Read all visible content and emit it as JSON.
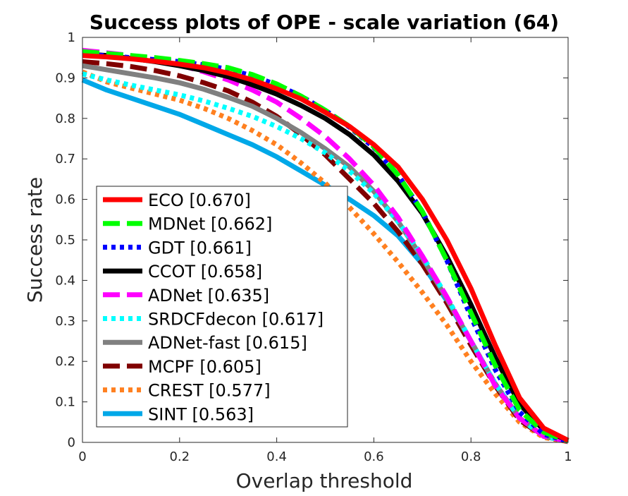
{
  "chart_data": {
    "type": "line",
    "title": "Success plots of OPE - scale variation (64)",
    "xlabel": "Overlap threshold",
    "ylabel": "Success rate",
    "xlim": [
      0,
      1
    ],
    "ylim": [
      0,
      1
    ],
    "xticks": [
      0,
      0.2,
      0.4,
      0.6,
      0.8,
      1
    ],
    "xtick_labels": [
      "0",
      "0.2",
      "0.4",
      "0.6",
      "0.8",
      "1"
    ],
    "yticks": [
      0,
      0.1,
      0.2,
      0.3,
      0.4,
      0.5,
      0.6,
      0.7,
      0.8,
      0.9,
      1
    ],
    "ytick_labels": [
      "0",
      "0.1",
      "0.2",
      "0.3",
      "0.4",
      "0.5",
      "0.6",
      "0.7",
      "0.8",
      "0.9",
      "1"
    ],
    "grid": false,
    "legend_position": "bottom-left",
    "x": [
      0,
      0.05,
      0.1,
      0.15,
      0.2,
      0.25,
      0.3,
      0.35,
      0.4,
      0.45,
      0.5,
      0.55,
      0.6,
      0.65,
      0.7,
      0.75,
      0.8,
      0.85,
      0.9,
      0.95,
      1
    ],
    "series": [
      {
        "name": "ECO",
        "label": "ECO [0.670]",
        "color": "#ff0000",
        "style": "solid",
        "values": [
          0.955,
          0.952,
          0.947,
          0.941,
          0.934,
          0.925,
          0.912,
          0.895,
          0.873,
          0.848,
          0.815,
          0.78,
          0.735,
          0.68,
          0.6,
          0.5,
          0.38,
          0.24,
          0.11,
          0.035,
          0.005
        ]
      },
      {
        "name": "MDNet",
        "label": "MDNet [0.662]",
        "color": "#00ff00",
        "style": "dashed",
        "values": [
          0.965,
          0.96,
          0.955,
          0.95,
          0.943,
          0.935,
          0.925,
          0.908,
          0.885,
          0.855,
          0.82,
          0.78,
          0.73,
          0.66,
          0.57,
          0.45,
          0.32,
          0.19,
          0.08,
          0.025,
          0.003
        ]
      },
      {
        "name": "GDT",
        "label": "GDT [0.661]",
        "color": "#0000ff",
        "style": "dotted",
        "values": [
          0.958,
          0.955,
          0.95,
          0.945,
          0.94,
          0.932,
          0.921,
          0.905,
          0.883,
          0.855,
          0.82,
          0.778,
          0.728,
          0.66,
          0.57,
          0.45,
          0.31,
          0.18,
          0.075,
          0.02,
          0.003
        ]
      },
      {
        "name": "CCOT",
        "label": "CCOT [0.658]",
        "color": "#000000",
        "style": "solid",
        "values": [
          0.96,
          0.955,
          0.948,
          0.94,
          0.93,
          0.918,
          0.903,
          0.883,
          0.86,
          0.832,
          0.8,
          0.76,
          0.71,
          0.645,
          0.565,
          0.46,
          0.34,
          0.21,
          0.095,
          0.03,
          0.005
        ]
      },
      {
        "name": "ADNet",
        "label": "ADNet [0.635]",
        "color": "#ff00ff",
        "style": "dashed",
        "values": [
          0.968,
          0.962,
          0.955,
          0.945,
          0.932,
          0.915,
          0.895,
          0.87,
          0.84,
          0.8,
          0.755,
          0.7,
          0.635,
          0.555,
          0.46,
          0.36,
          0.25,
          0.14,
          0.06,
          0.015,
          0.003
        ]
      },
      {
        "name": "SRDCFdecon",
        "label": "SRDCFdecon [0.617]",
        "color": "#00ffff",
        "style": "dotted",
        "values": [
          0.91,
          0.895,
          0.882,
          0.87,
          0.858,
          0.843,
          0.825,
          0.805,
          0.78,
          0.75,
          0.715,
          0.67,
          0.615,
          0.545,
          0.46,
          0.36,
          0.25,
          0.145,
          0.06,
          0.015,
          0.003
        ]
      },
      {
        "name": "ADNet-fast",
        "label": "ADNet-fast [0.615]",
        "color": "#808080",
        "style": "solid",
        "values": [
          0.93,
          0.92,
          0.91,
          0.9,
          0.888,
          0.872,
          0.852,
          0.83,
          0.8,
          0.765,
          0.725,
          0.68,
          0.62,
          0.545,
          0.455,
          0.355,
          0.25,
          0.145,
          0.06,
          0.015,
          0.003
        ]
      },
      {
        "name": "MCPF",
        "label": "MCPF [0.605]",
        "color": "#800000",
        "style": "dashed",
        "values": [
          0.94,
          0.935,
          0.928,
          0.918,
          0.905,
          0.888,
          0.868,
          0.84,
          0.805,
          0.76,
          0.71,
          0.65,
          0.59,
          0.52,
          0.44,
          0.345,
          0.24,
          0.14,
          0.055,
          0.015,
          0.002
        ]
      },
      {
        "name": "CREST",
        "label": "CREST [0.577]",
        "color": "#ff8020",
        "style": "dotted",
        "values": [
          0.915,
          0.89,
          0.875,
          0.86,
          0.845,
          0.825,
          0.8,
          0.77,
          0.735,
          0.69,
          0.64,
          0.58,
          0.515,
          0.445,
          0.37,
          0.29,
          0.2,
          0.12,
          0.05,
          0.012,
          0.002
        ]
      },
      {
        "name": "SINT",
        "label": "SINT [0.563]",
        "color": "#00a8e8",
        "style": "solid",
        "values": [
          0.895,
          0.87,
          0.85,
          0.83,
          0.81,
          0.785,
          0.76,
          0.735,
          0.705,
          0.67,
          0.635,
          0.6,
          0.56,
          0.51,
          0.44,
          0.35,
          0.25,
          0.145,
          0.06,
          0.015,
          0.003
        ]
      }
    ]
  }
}
